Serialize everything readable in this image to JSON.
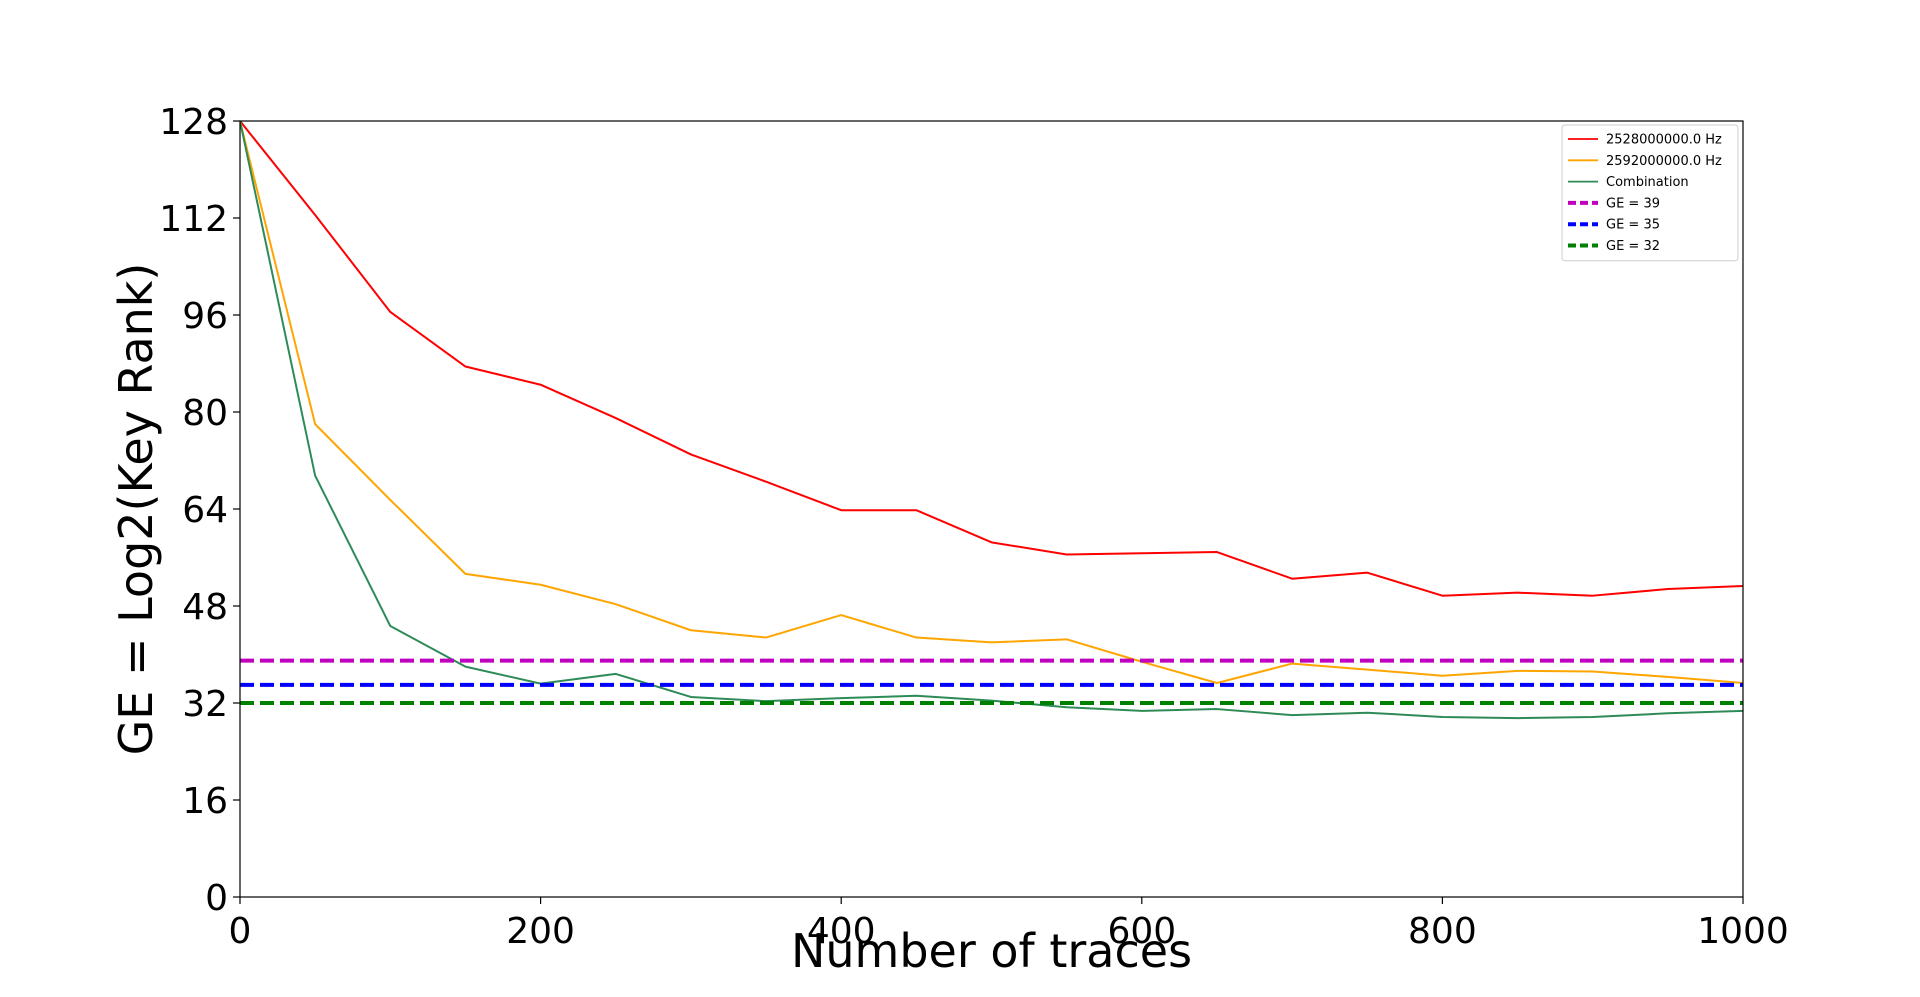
{
  "chart_data": {
    "type": "line",
    "title": "",
    "xlabel": "Number of traces",
    "ylabel": "GE = Log2(Key Rank)",
    "xlim": [
      0,
      1000
    ],
    "ylim": [
      0,
      128
    ],
    "xticks": [
      0,
      200,
      400,
      600,
      800,
      1000
    ],
    "yticks": [
      0,
      16,
      32,
      48,
      64,
      80,
      96,
      112,
      128
    ],
    "grid": false,
    "legend_position": "top-right",
    "x": [
      0,
      50,
      100,
      150,
      200,
      250,
      300,
      350,
      400,
      450,
      500,
      550,
      600,
      650,
      700,
      750,
      800,
      850,
      900,
      950,
      1000
    ],
    "series": [
      {
        "name": "2528000000.0 Hz",
        "color": "#ff0000",
        "style": "solid",
        "values": [
          128,
          112.5,
          96.5,
          87.5,
          84.5,
          79,
          73,
          68.5,
          63.8,
          63.8,
          58.5,
          56.5,
          56.7,
          56.9,
          52.5,
          53.5,
          49.7,
          50.2,
          49.7,
          50.8,
          51.3
        ]
      },
      {
        "name": "2592000000.0 Hz",
        "color": "#ffa500",
        "style": "solid",
        "values": [
          128,
          78,
          65.5,
          53.3,
          51.5,
          48.3,
          44,
          42.8,
          46.5,
          42.8,
          42,
          42.5,
          38.8,
          35.3,
          38.5,
          37.5,
          36.5,
          37.3,
          37.2,
          36.3,
          35.3
        ]
      },
      {
        "name": "Combination",
        "color": "#2e8b57",
        "style": "solid",
        "values": [
          128,
          69.5,
          44.7,
          38,
          35.2,
          36.8,
          33,
          32.3,
          32.8,
          33.2,
          32.4,
          31.3,
          30.7,
          31,
          30,
          30.4,
          29.7,
          29.5,
          29.7,
          30.3,
          30.7
        ]
      }
    ],
    "reference_lines": [
      {
        "name": "GE = 39",
        "value": 39,
        "color": "#bf00bf",
        "style": "dashed"
      },
      {
        "name": "GE = 35",
        "value": 35,
        "color": "#0000ff",
        "style": "dashed"
      },
      {
        "name": "GE = 32",
        "value": 32,
        "color": "#008000",
        "style": "dashed"
      }
    ]
  }
}
